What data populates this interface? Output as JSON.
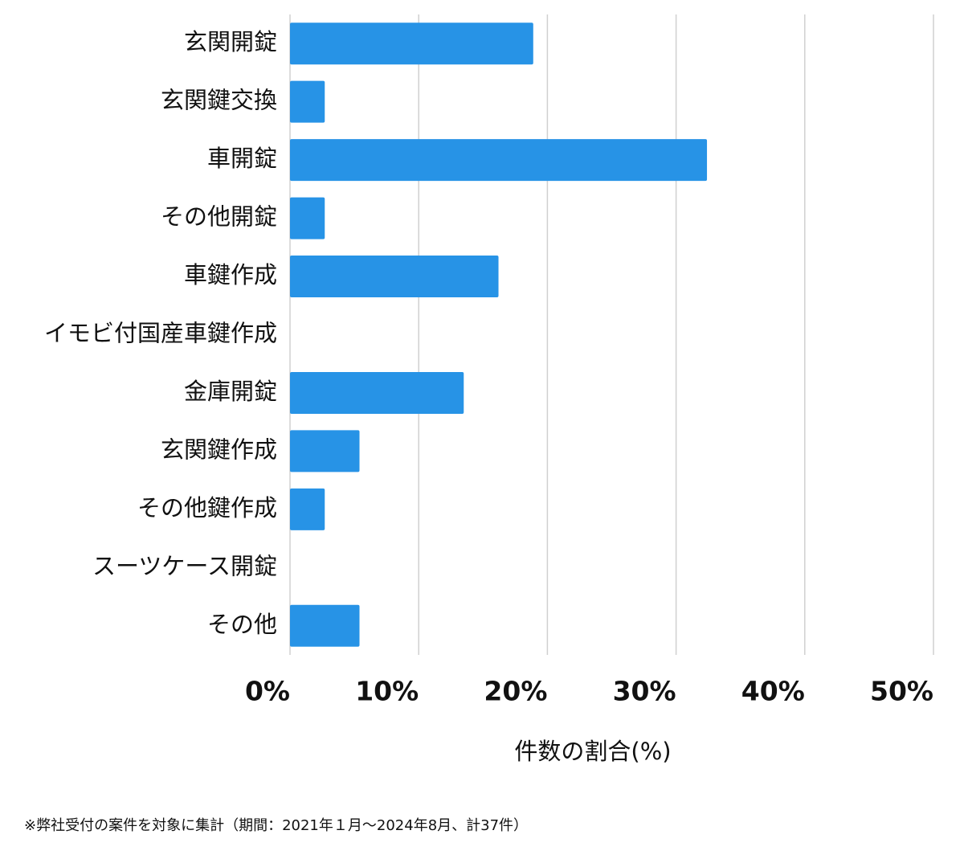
{
  "chart_data": {
    "type": "bar",
    "orientation": "horizontal",
    "categories": [
      "玄関開錠",
      "玄関鍵交換",
      "車開錠",
      "その他開錠",
      "車鍵作成",
      "イモビ付国産車鍵作成",
      "金庫開錠",
      "玄関鍵作成",
      "その他鍵作成",
      "スーツケース開錠",
      "その他"
    ],
    "values": [
      18.9,
      2.7,
      32.4,
      2.7,
      16.2,
      0,
      13.5,
      5.4,
      2.7,
      0,
      5.4
    ],
    "color": "#2793e6",
    "xlim": [
      0,
      50
    ],
    "xticks": [
      {
        "value": 0,
        "label": "0%"
      },
      {
        "value": 10,
        "label": "10%"
      },
      {
        "value": 20,
        "label": "20%"
      },
      {
        "value": 30,
        "label": "30%"
      },
      {
        "value": 40,
        "label": "40%"
      },
      {
        "value": 50,
        "label": "50%"
      }
    ],
    "xlabel": "件数の割合(%)",
    "grid": true,
    "footnote": "※弊社受付の案件を対象に集計（期間：2021年１月〜2024年8月、計37件）"
  }
}
